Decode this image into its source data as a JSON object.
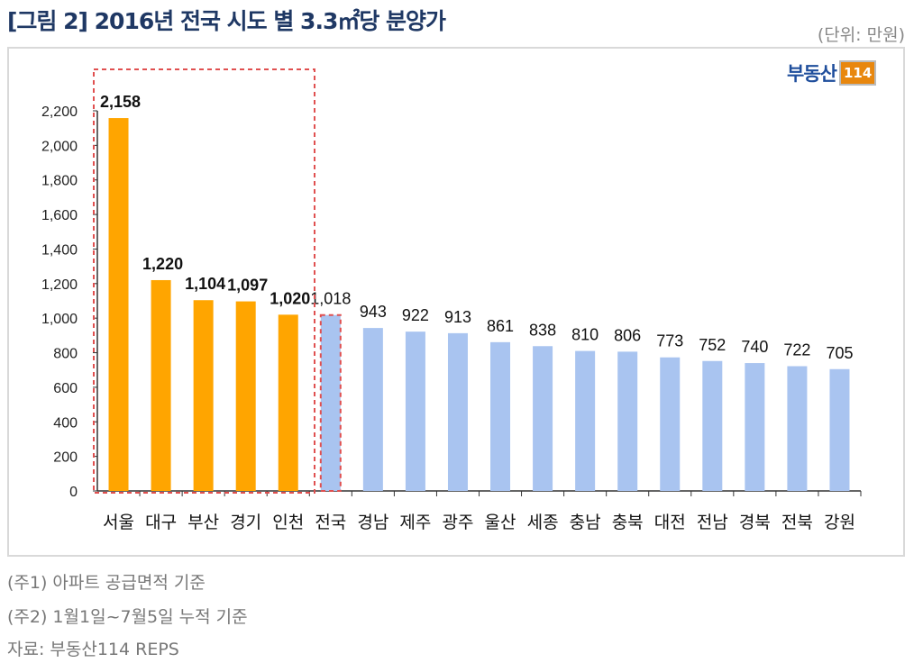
{
  "title": "[그림 2] 2016년 전국 시도 별 3.3㎡당 분양가",
  "unit": "(단위: 만원)",
  "logo": {
    "text": "부동산",
    "number": "114"
  },
  "notes": [
    "(주1) 아파트 공급면적 기준",
    "(주2) 1월1일~7월5일 누적 기준",
    "자료: 부동산114 REPS"
  ],
  "colors": {
    "highlight": "#ffa500",
    "other": "#a9c4f0",
    "dashed_box": "#e05050"
  },
  "chart_data": {
    "type": "bar",
    "categories": [
      "서울",
      "대구",
      "부산",
      "경기",
      "인천",
      "전국",
      "경남",
      "제주",
      "광주",
      "울산",
      "세종",
      "충남",
      "충북",
      "대전",
      "전남",
      "경북",
      "전북",
      "강원"
    ],
    "values": [
      2158,
      1220,
      1104,
      1097,
      1020,
      1018,
      943,
      922,
      913,
      861,
      838,
      810,
      806,
      773,
      752,
      740,
      722,
      705
    ],
    "data_labels": [
      "2,158",
      "1,220",
      "1,104",
      "1,097",
      "1,020",
      "1,018",
      "943",
      "922",
      "913",
      "861",
      "838",
      "810",
      "806",
      "773",
      "752",
      "740",
      "722",
      "705"
    ],
    "highlighted": [
      "서울",
      "대구",
      "부산",
      "경기",
      "인천"
    ],
    "ylim": [
      0,
      2200
    ],
    "yticks": [
      "0",
      "200",
      "400",
      "600",
      "800",
      "1,000",
      "1,200",
      "1,400",
      "1,600",
      "1,800",
      "2,000",
      "2,200"
    ],
    "grid": false,
    "legend": "none"
  }
}
